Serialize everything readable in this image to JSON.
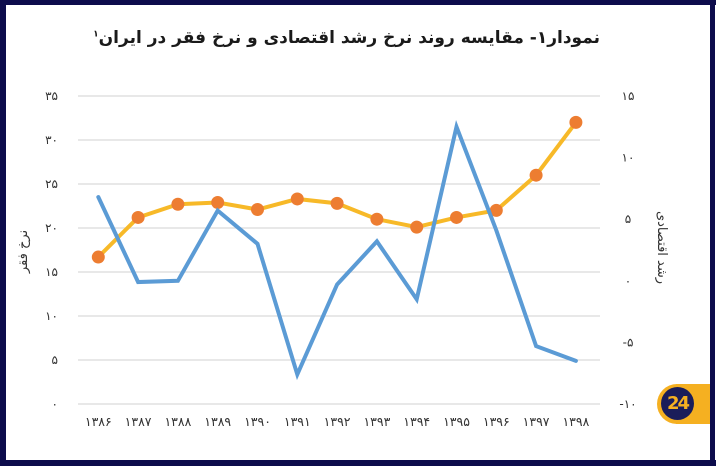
{
  "title": "نمودار۱- مقایسه روند نرخ رشد اقتصادی و نرخ فقر در ایران",
  "title_footnote": "۱",
  "logo_text": "24",
  "colors": {
    "frame": "#0d0c4c",
    "poverty_line": "#f7b928",
    "poverty_marker": "#ed7d31",
    "growth_line": "#5b9bd5",
    "grid": "#d9d9d9",
    "logo": "#f5b021"
  },
  "chart_data": {
    "type": "line",
    "title": "نمودار۱- مقایسه روند نرخ رشد اقتصادی و نرخ فقر در ایران",
    "xlabel": "",
    "categories": [
      "۱۳۸۶",
      "۱۳۸۷",
      "۱۳۸۸",
      "۱۳۸۹",
      "۱۳۹۰",
      "۱۳۹۱",
      "۱۳۹۲",
      "۱۳۹۳",
      "۱۳۹۴",
      "۱۳۹۵",
      "۱۳۹۶",
      "۱۳۹۷",
      "۱۳۹۸"
    ],
    "x": [
      1386,
      1387,
      1388,
      1389,
      1390,
      1391,
      1392,
      1393,
      1394,
      1395,
      1396,
      1397,
      1398
    ],
    "series": [
      {
        "name": "نرخ فقر",
        "axis": "left",
        "markers": true,
        "values": [
          16.7,
          21.2,
          22.7,
          22.9,
          22.1,
          23.3,
          22.8,
          21.0,
          20.1,
          21.2,
          22.0,
          26.0,
          32.0
        ]
      },
      {
        "name": "رشد اقتصادی",
        "axis": "right",
        "markers": false,
        "values": [
          6.8,
          -0.1,
          0.0,
          5.7,
          3.0,
          -7.6,
          -0.3,
          3.2,
          -1.5,
          12.5,
          4.1,
          -5.3,
          -6.5
        ]
      }
    ],
    "left_axis": {
      "label": "نرخ فقر",
      "ylim": [
        0,
        35
      ],
      "ticks": [
        0,
        5,
        10,
        15,
        20,
        25,
        30,
        35
      ],
      "tick_labels": [
        "۰",
        "۵",
        "۱۰",
        "۱۵",
        "۲۰",
        "۲۵",
        "۳۰",
        "۳۵"
      ]
    },
    "right_axis": {
      "label": "رشد اقتصادی",
      "ylim": [
        -10,
        15
      ],
      "ticks": [
        -10,
        -5,
        0,
        5,
        10,
        15
      ],
      "tick_labels": [
        "-۱۰",
        "-۵",
        "۰",
        "۵",
        "۱۰",
        "۱۵"
      ]
    },
    "grid": true,
    "legend": "none"
  }
}
